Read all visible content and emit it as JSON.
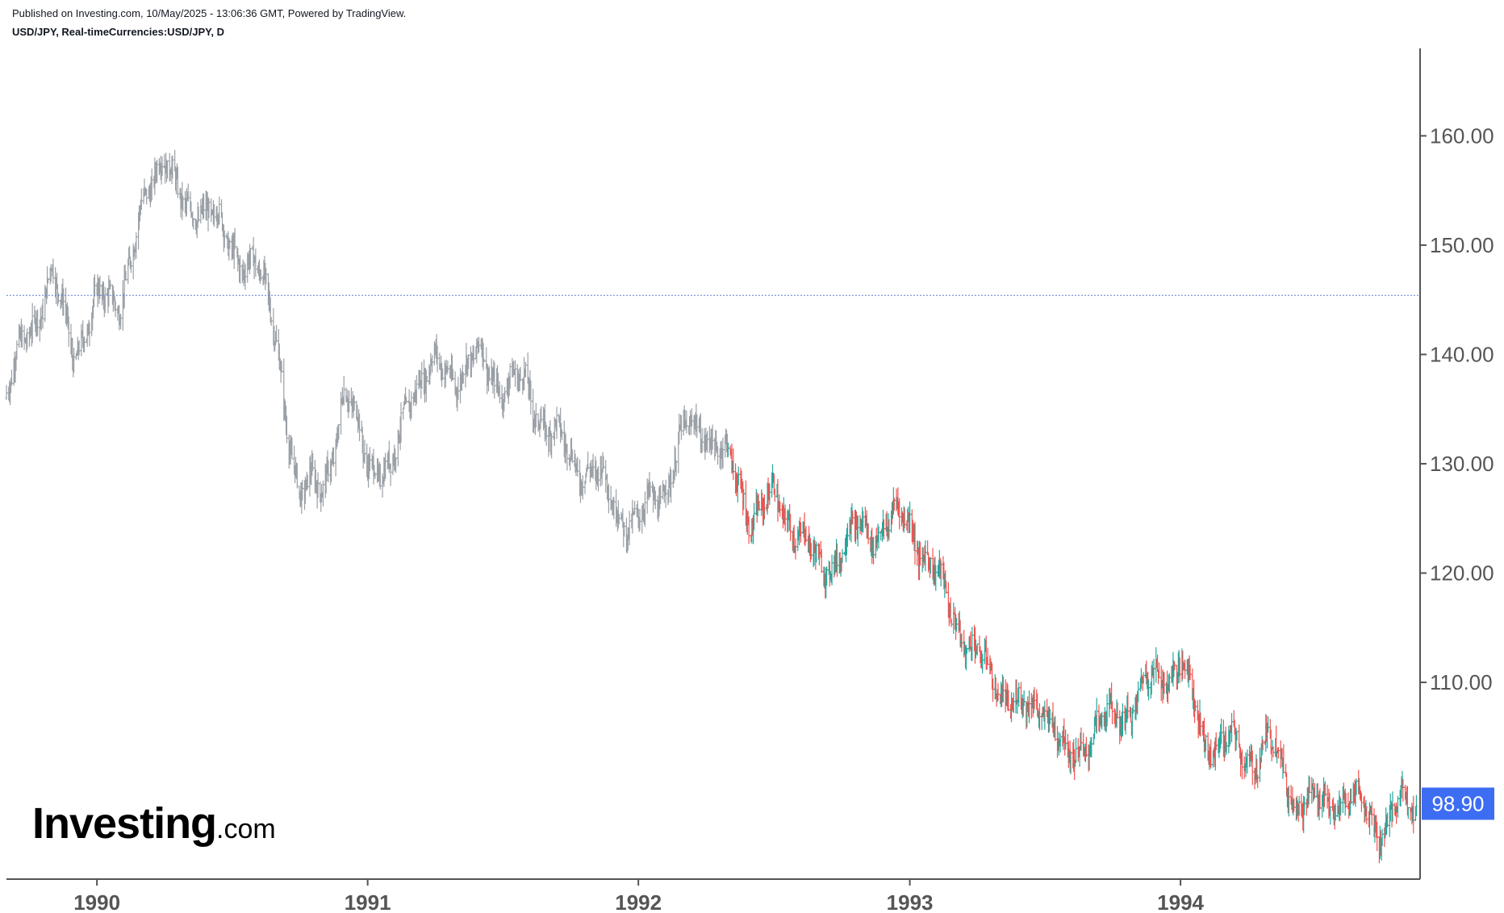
{
  "header": {
    "published": "Published on Investing.com, 10/May/2025 - 13:06:36 GMT, Powered by TradingView.",
    "symbol": "USD/JPY, Real-timeCurrencies:USD/JPY, D"
  },
  "logo": {
    "main": "Investing",
    "suffix": ".com"
  },
  "colors": {
    "up": "#26a69a",
    "down": "#ef5350",
    "neutral": "#9aa0a6",
    "axis": "#555555",
    "last_price_bg": "#3d6df2",
    "ref_line": "#5b7fd6"
  },
  "chart_data": {
    "type": "ohlc",
    "title": "",
    "xlabel": "",
    "ylabel": "",
    "ylim": [
      92.0,
      168.0
    ],
    "xlim": [
      "1989-09",
      "1994-11"
    ],
    "y_ticks": [
      "110.00",
      "120.00",
      "130.00",
      "140.00",
      "150.00",
      "160.00"
    ],
    "x_ticks": [
      "1990",
      "1991",
      "1992",
      "1993",
      "1994"
    ],
    "reference_line": 145.4,
    "last_price": "98.90",
    "series": [
      {
        "price_path": [
          [
            "1989-09-01",
            136.0
          ],
          [
            "1989-10-01",
            142.5
          ],
          [
            "1989-11-01",
            147.0
          ],
          [
            "1989-12-01",
            140.5
          ],
          [
            "1990-01-01",
            144.5
          ],
          [
            "1990-02-01",
            145.5
          ],
          [
            "1990-03-01",
            152.0
          ],
          [
            "1990-04-01",
            159.5
          ],
          [
            "1990-05-01",
            152.0
          ],
          [
            "1990-06-01",
            154.5
          ],
          [
            "1990-07-01",
            148.5
          ],
          [
            "1990-08-01",
            149.5
          ],
          [
            "1990-09-01",
            140.5
          ],
          [
            "1990-10-01",
            127.0
          ],
          [
            "1990-11-01",
            128.0
          ],
          [
            "1990-12-01",
            136.0
          ],
          [
            "1991-01-01",
            131.0
          ],
          [
            "1991-02-01",
            128.5
          ],
          [
            "1991-03-01",
            137.5
          ],
          [
            "1991-04-01",
            138.5
          ],
          [
            "1991-05-01",
            138.5
          ],
          [
            "1991-06-01",
            139.5
          ],
          [
            "1991-07-01",
            137.5
          ],
          [
            "1991-08-01",
            137.0
          ],
          [
            "1991-09-01",
            133.5
          ],
          [
            "1991-10-01",
            130.5
          ],
          [
            "1991-11-01",
            129.5
          ],
          [
            "1991-12-01",
            126.0
          ],
          [
            "1992-01-01",
            124.5
          ],
          [
            "1992-02-01",
            127.5
          ],
          [
            "1992-03-01",
            132.5
          ],
          [
            "1992-04-01",
            133.5
          ],
          [
            "1992-05-01",
            130.0
          ],
          [
            "1992-06-01",
            125.5
          ],
          [
            "1992-07-01",
            126.5
          ],
          [
            "1992-08-01",
            124.5
          ],
          [
            "1992-09-01",
            120.0
          ],
          [
            "1992-10-01",
            122.5
          ],
          [
            "1992-11-01",
            124.0
          ],
          [
            "1992-12-01",
            124.5
          ],
          [
            "1993-01-01",
            125.0
          ],
          [
            "1993-02-01",
            120.0
          ],
          [
            "1993-03-01",
            116.5
          ],
          [
            "1993-04-01",
            112.0
          ],
          [
            "1993-05-01",
            110.0
          ],
          [
            "1993-06-01",
            107.0
          ],
          [
            "1993-07-01",
            108.5
          ],
          [
            "1993-08-01",
            102.5
          ],
          [
            "1993-09-01",
            105.5
          ],
          [
            "1993-10-01",
            106.5
          ],
          [
            "1993-11-01",
            108.5
          ],
          [
            "1993-12-01",
            110.5
          ],
          [
            "1994-01-01",
            112.0
          ],
          [
            "1994-02-01",
            105.0
          ],
          [
            "1994-03-01",
            104.5
          ],
          [
            "1994-04-01",
            103.0
          ],
          [
            "1994-05-01",
            104.5
          ],
          [
            "1994-06-01",
            100.0
          ],
          [
            "1994-07-01",
            98.5
          ],
          [
            "1994-08-01",
            99.5
          ],
          [
            "1994-09-01",
            98.5
          ],
          [
            "1994-10-01",
            97.0
          ],
          [
            "1994-11-01",
            98.9
          ]
        ]
      }
    ]
  }
}
